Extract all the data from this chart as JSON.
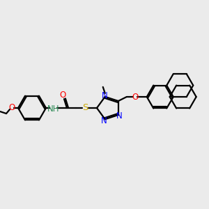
{
  "bg": "#ebebeb",
  "atom_colors": {
    "O": "#ff0000",
    "N": "#0000ff",
    "S": "#ccaa00",
    "NH": "#2e8b57",
    "C": "#000000"
  },
  "lw": 1.6,
  "font_size": 8.5
}
